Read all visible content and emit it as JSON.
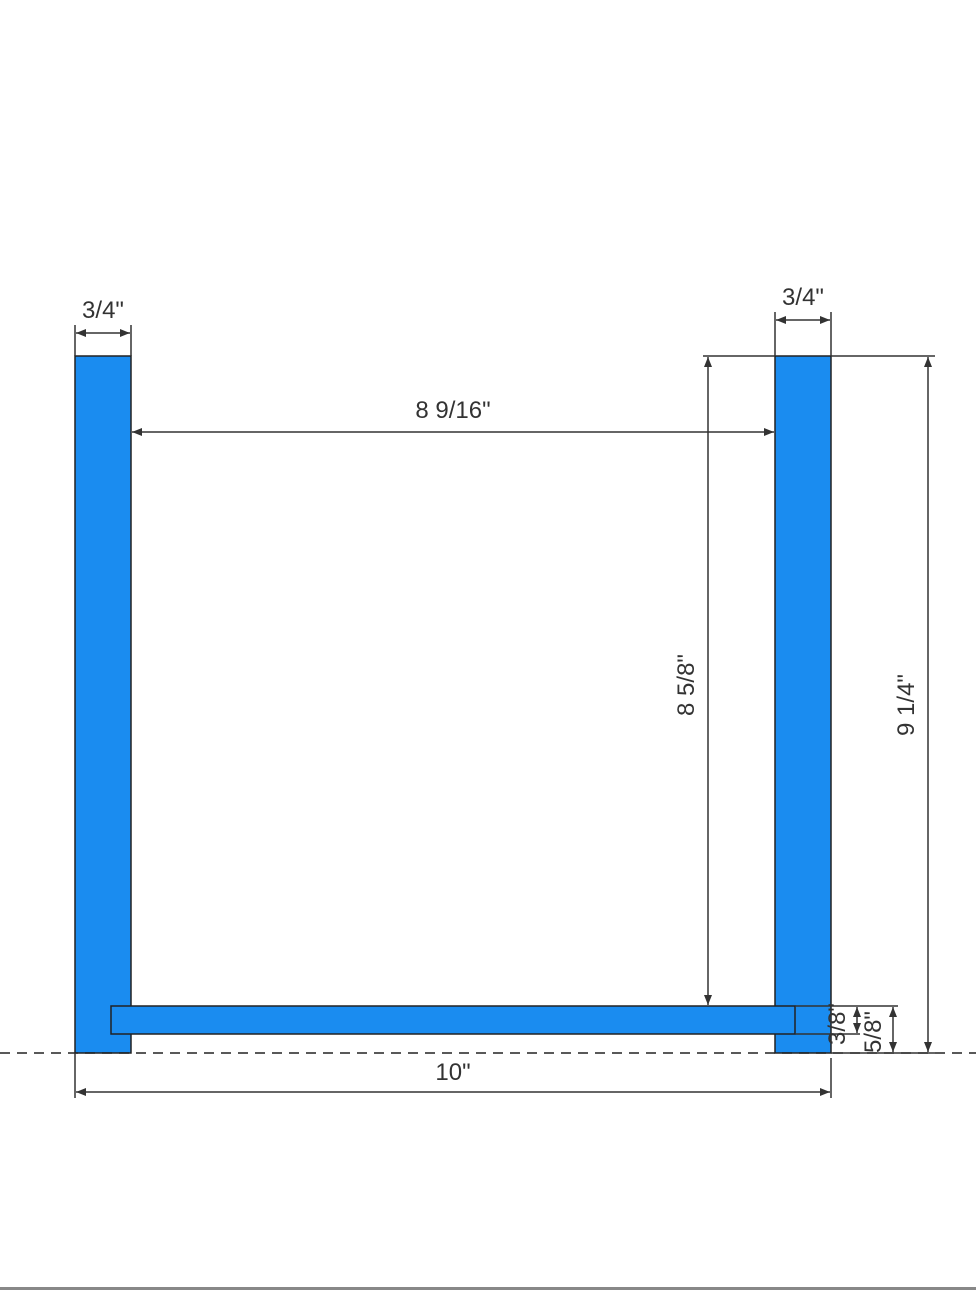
{
  "diagram": {
    "board_color": "#1a8cf0",
    "dimensions": {
      "left_board_thickness": "3/4\"",
      "right_board_thickness": "3/4\"",
      "inner_width": "8 9/16\"",
      "inner_height_to_shelf": "8 5/8\"",
      "overall_height": "9 1/4\"",
      "shelf_thickness": "3/8\"",
      "shelf_top_height": "5/8\"",
      "overall_width": "10\""
    }
  }
}
